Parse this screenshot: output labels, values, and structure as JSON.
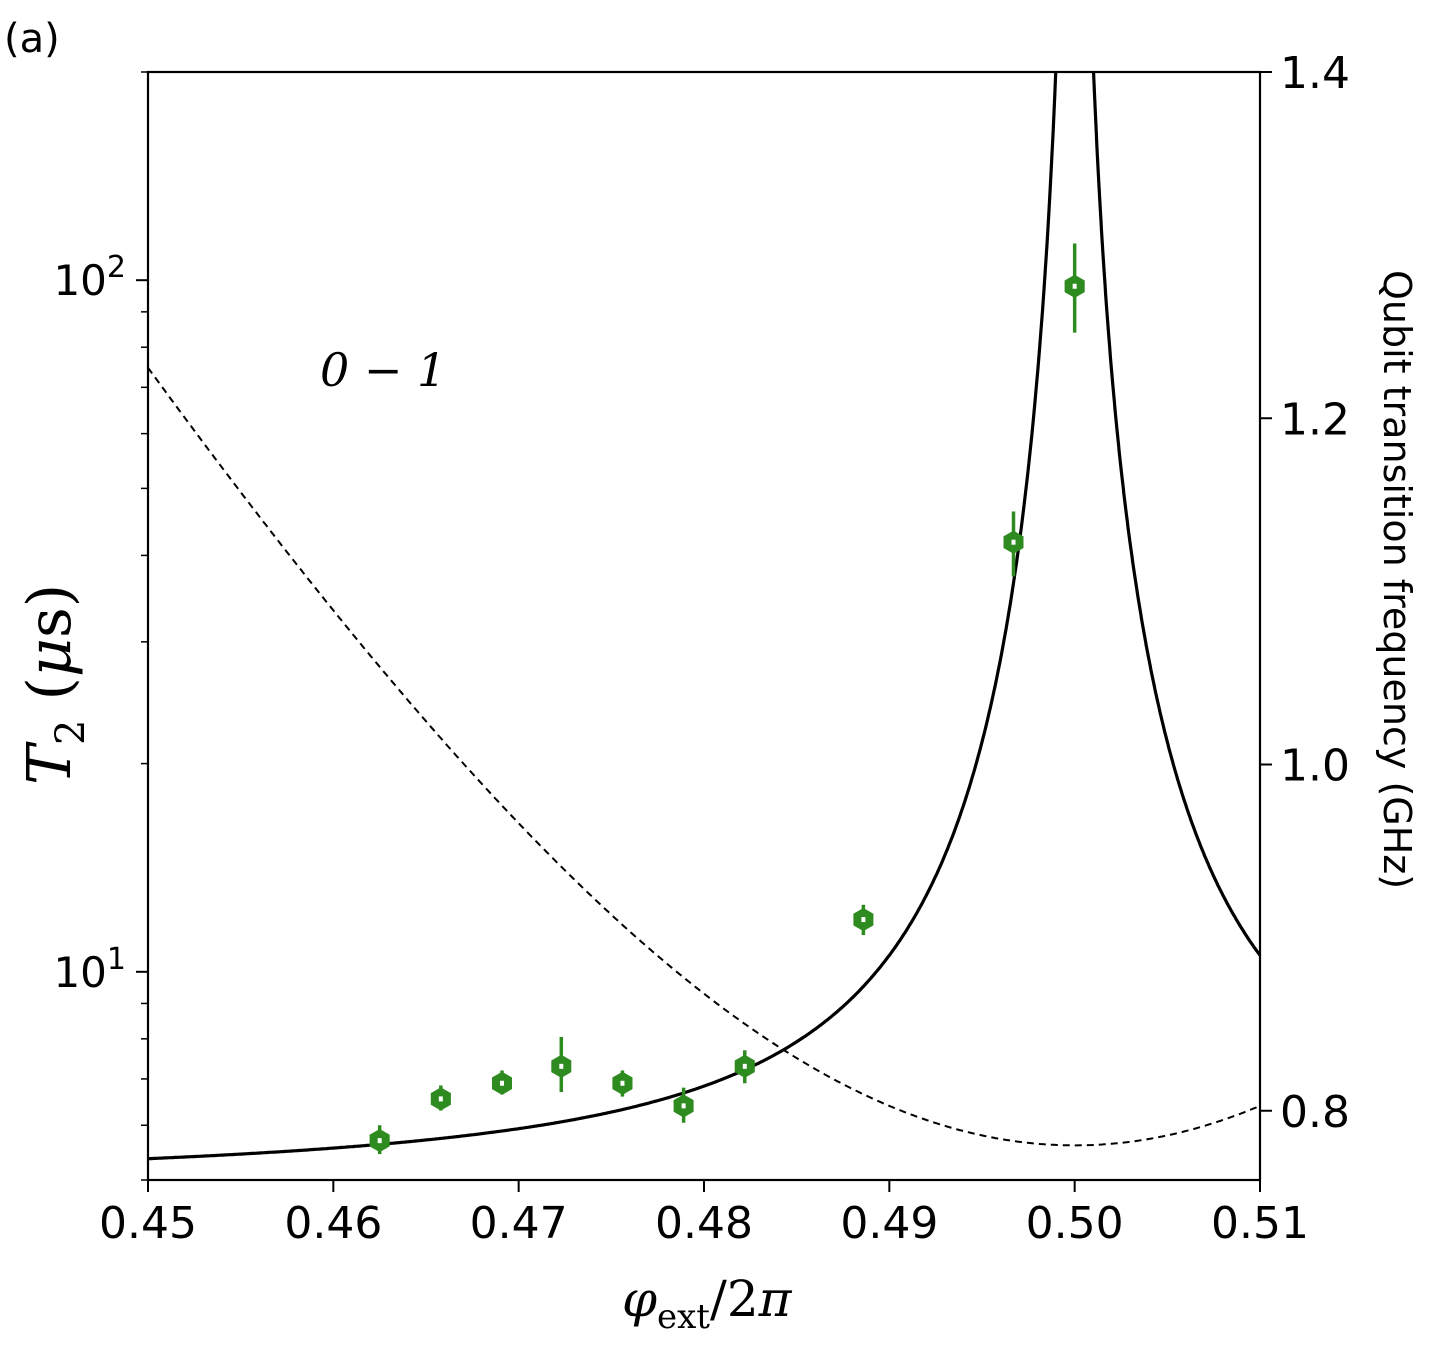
{
  "panel_label": "(a)",
  "colors": {
    "data": "#2e8b1f",
    "axes": "#000000",
    "model": "#000000"
  },
  "chart_data": {
    "type": "scatter",
    "x_ticks": [
      "0.45",
      "0.46",
      "0.47",
      "0.48",
      "0.49",
      "0.50",
      "0.51"
    ],
    "xlim": [
      0.45,
      0.51
    ],
    "xlabel": "φ_ext/2π",
    "ylabel_left": "T_2 (μs)",
    "ylabel_right": "Qubit transition frequency (GHz)",
    "y_left_scale": "log",
    "y_left_lim": [
      5.0,
      200.0
    ],
    "y_left_major_ticks": [
      {
        "value": 10,
        "base": "10",
        "exp": "1"
      },
      {
        "value": 100,
        "base": "10",
        "exp": "2"
      }
    ],
    "y_right_lim": [
      0.76,
      1.4
    ],
    "y_right_ticks": [
      0.8,
      1.0,
      1.2,
      1.4
    ],
    "y_right_tick_labels": [
      "0.8",
      "1.0",
      "1.2",
      "1.4"
    ],
    "annotation": "0 − 1",
    "t2_points": [
      {
        "x": 0.4625,
        "y": 5.7,
        "err": [
          0.25,
          0.3
        ]
      },
      {
        "x": 0.4658,
        "y": 6.55,
        "err": [
          0.25,
          0.3
        ]
      },
      {
        "x": 0.4691,
        "y": 6.9,
        "err": [
          0.25,
          0.3
        ]
      },
      {
        "x": 0.4723,
        "y": 7.3,
        "err": [
          0.6,
          0.75
        ]
      },
      {
        "x": 0.4756,
        "y": 6.9,
        "err": [
          0.3,
          0.3
        ]
      },
      {
        "x": 0.4789,
        "y": 6.4,
        "err": [
          0.35,
          0.4
        ]
      },
      {
        "x": 0.4822,
        "y": 7.3,
        "err": [
          0.4,
          0.4
        ]
      },
      {
        "x": 0.4886,
        "y": 11.9,
        "err": [
          0.6,
          0.6
        ]
      },
      {
        "x": 0.4967,
        "y": 41.8,
        "err": [
          4.5,
          4.5
        ]
      },
      {
        "x": 0.5,
        "y": 98.0,
        "err": [
          14.0,
          15.0
        ]
      }
    ],
    "series": [
      {
        "style": "solid",
        "axis": "left",
        "description_value": "T2 model, diverges at x = 0.5"
      },
      {
        "style": "dashed",
        "axis": "right",
        "description_value": "0-1 transition frequency, minimum 0.78 GHz at x = 0.5"
      }
    ]
  }
}
